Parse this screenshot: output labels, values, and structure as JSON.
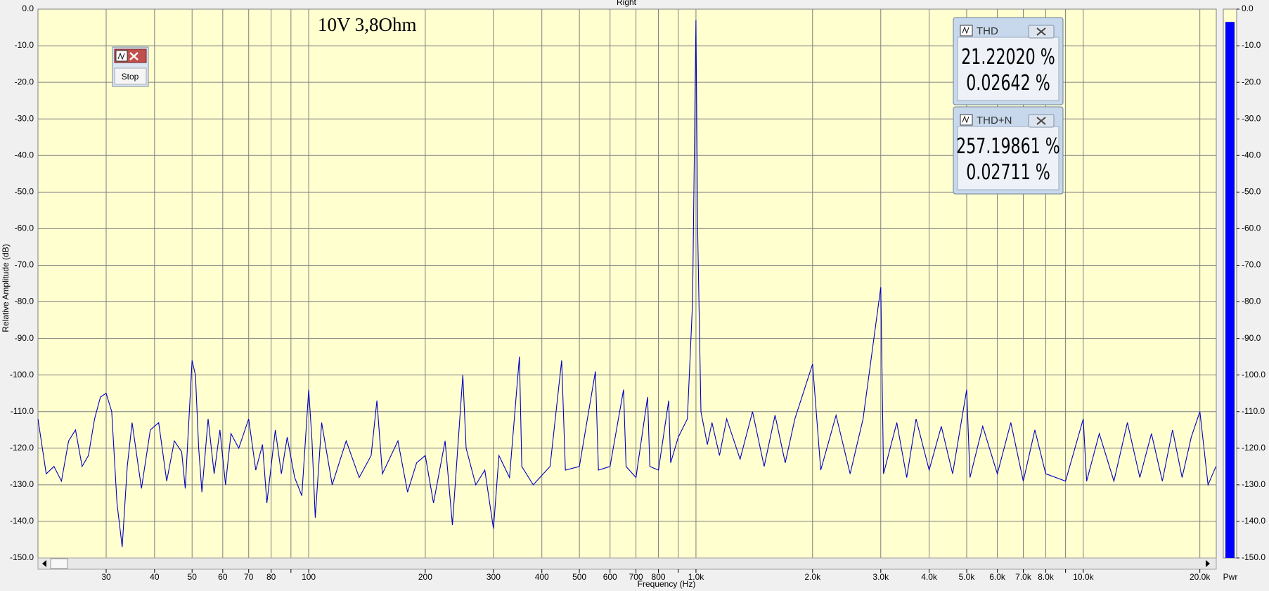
{
  "chart_data": {
    "type": "line",
    "title": "Right",
    "xlabel": "Frequency (Hz)",
    "ylabel": "Relative Amplitude (dB)",
    "annotation": "10V 3,8Ohm",
    "xscale": "log",
    "grid": true,
    "color": "#0000c0",
    "xlim": [
      20,
      22050
    ],
    "ylim": [
      -150,
      0
    ],
    "xticks": [
      {
        "value": 30,
        "label": "30"
      },
      {
        "value": 40,
        "label": "40"
      },
      {
        "value": 50,
        "label": "50"
      },
      {
        "value": 60,
        "label": "60"
      },
      {
        "value": 70,
        "label": "70"
      },
      {
        "value": 80,
        "label": "80"
      },
      {
        "value": 90,
        "label": null
      },
      {
        "value": 100,
        "label": "100"
      },
      {
        "value": 200,
        "label": "200"
      },
      {
        "value": 300,
        "label": "300"
      },
      {
        "value": 400,
        "label": "400"
      },
      {
        "value": 500,
        "label": "500"
      },
      {
        "value": 600,
        "label": "600"
      },
      {
        "value": 700,
        "label": "700"
      },
      {
        "value": 800,
        "label": "800"
      },
      {
        "value": 900,
        "label": null
      },
      {
        "value": 1000,
        "label": "1.0k"
      },
      {
        "value": 2000,
        "label": "2.0k"
      },
      {
        "value": 3000,
        "label": "3.0k"
      },
      {
        "value": 4000,
        "label": "4.0k"
      },
      {
        "value": 5000,
        "label": "5.0k"
      },
      {
        "value": 6000,
        "label": "6.0k"
      },
      {
        "value": 7000,
        "label": "7.0k"
      },
      {
        "value": 8000,
        "label": "8.0k"
      },
      {
        "value": 9000,
        "label": null
      },
      {
        "value": 10000,
        "label": "10.0k"
      },
      {
        "value": 20000,
        "label": "20.0k"
      }
    ],
    "yticks": [
      {
        "value": 0,
        "label": "0.0"
      },
      {
        "value": -10,
        "label": "-10.0"
      },
      {
        "value": -20,
        "label": "-20.0"
      },
      {
        "value": -30,
        "label": "-30.0"
      },
      {
        "value": -40,
        "label": "-40.0"
      },
      {
        "value": -50,
        "label": "-50.0"
      },
      {
        "value": -60,
        "label": "-60.0"
      },
      {
        "value": -70,
        "label": "-70.0"
      },
      {
        "value": -80,
        "label": "-80.0"
      },
      {
        "value": -90,
        "label": "-90.0"
      },
      {
        "value": -100,
        "label": "-100.0"
      },
      {
        "value": -110,
        "label": "-110.0"
      },
      {
        "value": -120,
        "label": "-120.0"
      },
      {
        "value": -130,
        "label": "-130.0"
      },
      {
        "value": -140,
        "label": "-140.0"
      },
      {
        "value": -150,
        "label": "-150.0"
      }
    ],
    "x": [
      20,
      21,
      22,
      23,
      24,
      25,
      26,
      27,
      28,
      29,
      30,
      31,
      32,
      33,
      34,
      35,
      37,
      39,
      41,
      43,
      45,
      47,
      48,
      50,
      51,
      52,
      53,
      55,
      57,
      59,
      61,
      63,
      66,
      70,
      73,
      76,
      78,
      82,
      85,
      88,
      92,
      96,
      100,
      102,
      104,
      108,
      115,
      125,
      135,
      145,
      150,
      155,
      170,
      180,
      190,
      200,
      210,
      225,
      235,
      250,
      255,
      270,
      285,
      300,
      310,
      330,
      350,
      355,
      380,
      420,
      450,
      460,
      500,
      550,
      560,
      600,
      650,
      660,
      700,
      750,
      760,
      800,
      850,
      860,
      900,
      950,
      980,
      1000,
      1010,
      1030,
      1070,
      1100,
      1150,
      1200,
      1300,
      1400,
      1500,
      1600,
      1700,
      1800,
      2000,
      2100,
      2300,
      2500,
      2700,
      3000,
      3050,
      3300,
      3500,
      3700,
      4000,
      4300,
      4600,
      5000,
      5100,
      5500,
      6000,
      6500,
      7000,
      7500,
      8000,
      9000,
      10000,
      10200,
      11000,
      12000,
      13000,
      14000,
      15000,
      16000,
      17000,
      18000,
      19000,
      20000,
      21000,
      22000
    ],
    "values": [
      -112,
      -127,
      -125,
      -129,
      -118,
      -115,
      -125,
      -122,
      -112,
      -106,
      -105,
      -110,
      -135,
      -147,
      -125,
      -113,
      -131,
      -115,
      -113,
      -129,
      -118,
      -121,
      -131,
      -96,
      -100,
      -120,
      -132,
      -112,
      -127,
      -115,
      -130,
      -116,
      -120,
      -112,
      -126,
      -119,
      -135,
      -115,
      -127,
      -117,
      -128,
      -133,
      -104,
      -118,
      -139,
      -113,
      -130,
      -118,
      -128,
      -122,
      -107,
      -127,
      -118,
      -132,
      -124,
      -122,
      -135,
      -118,
      -141,
      -100,
      -120,
      -130,
      -126,
      -142,
      -122,
      -128,
      -95,
      -125,
      -130,
      -125,
      -96,
      -126,
      -125,
      -99,
      -126,
      -125,
      -104,
      -125,
      -128,
      -106,
      -125,
      -126,
      -107,
      -124,
      -117,
      -112,
      -80,
      -3,
      -60,
      -110,
      -119,
      -113,
      -122,
      -112,
      -123,
      -110,
      -125,
      -111,
      -124,
      -112,
      -97,
      -126,
      -111,
      -127,
      -112,
      -76,
      -127,
      -113,
      -128,
      -112,
      -126,
      -114,
      -127,
      -104,
      -128,
      -114,
      -127,
      -113,
      -129,
      -115,
      -127,
      -129,
      -112,
      -129,
      -116,
      -129,
      -113,
      -128,
      -116,
      -129,
      -115,
      -128,
      -117,
      -110,
      -130,
      -125
    ],
    "level_meter": {
      "label": "Pwr",
      "value": -3.5,
      "color": "#0000ff"
    }
  },
  "ui": {
    "stop_button": "Stop",
    "thd": {
      "title": "THD",
      "readings": [
        "21.22020 %",
        "0.02642 %"
      ]
    },
    "thdn": {
      "title": "THD+N",
      "readings": [
        "257.19861 %",
        "0.02711 %"
      ]
    }
  }
}
